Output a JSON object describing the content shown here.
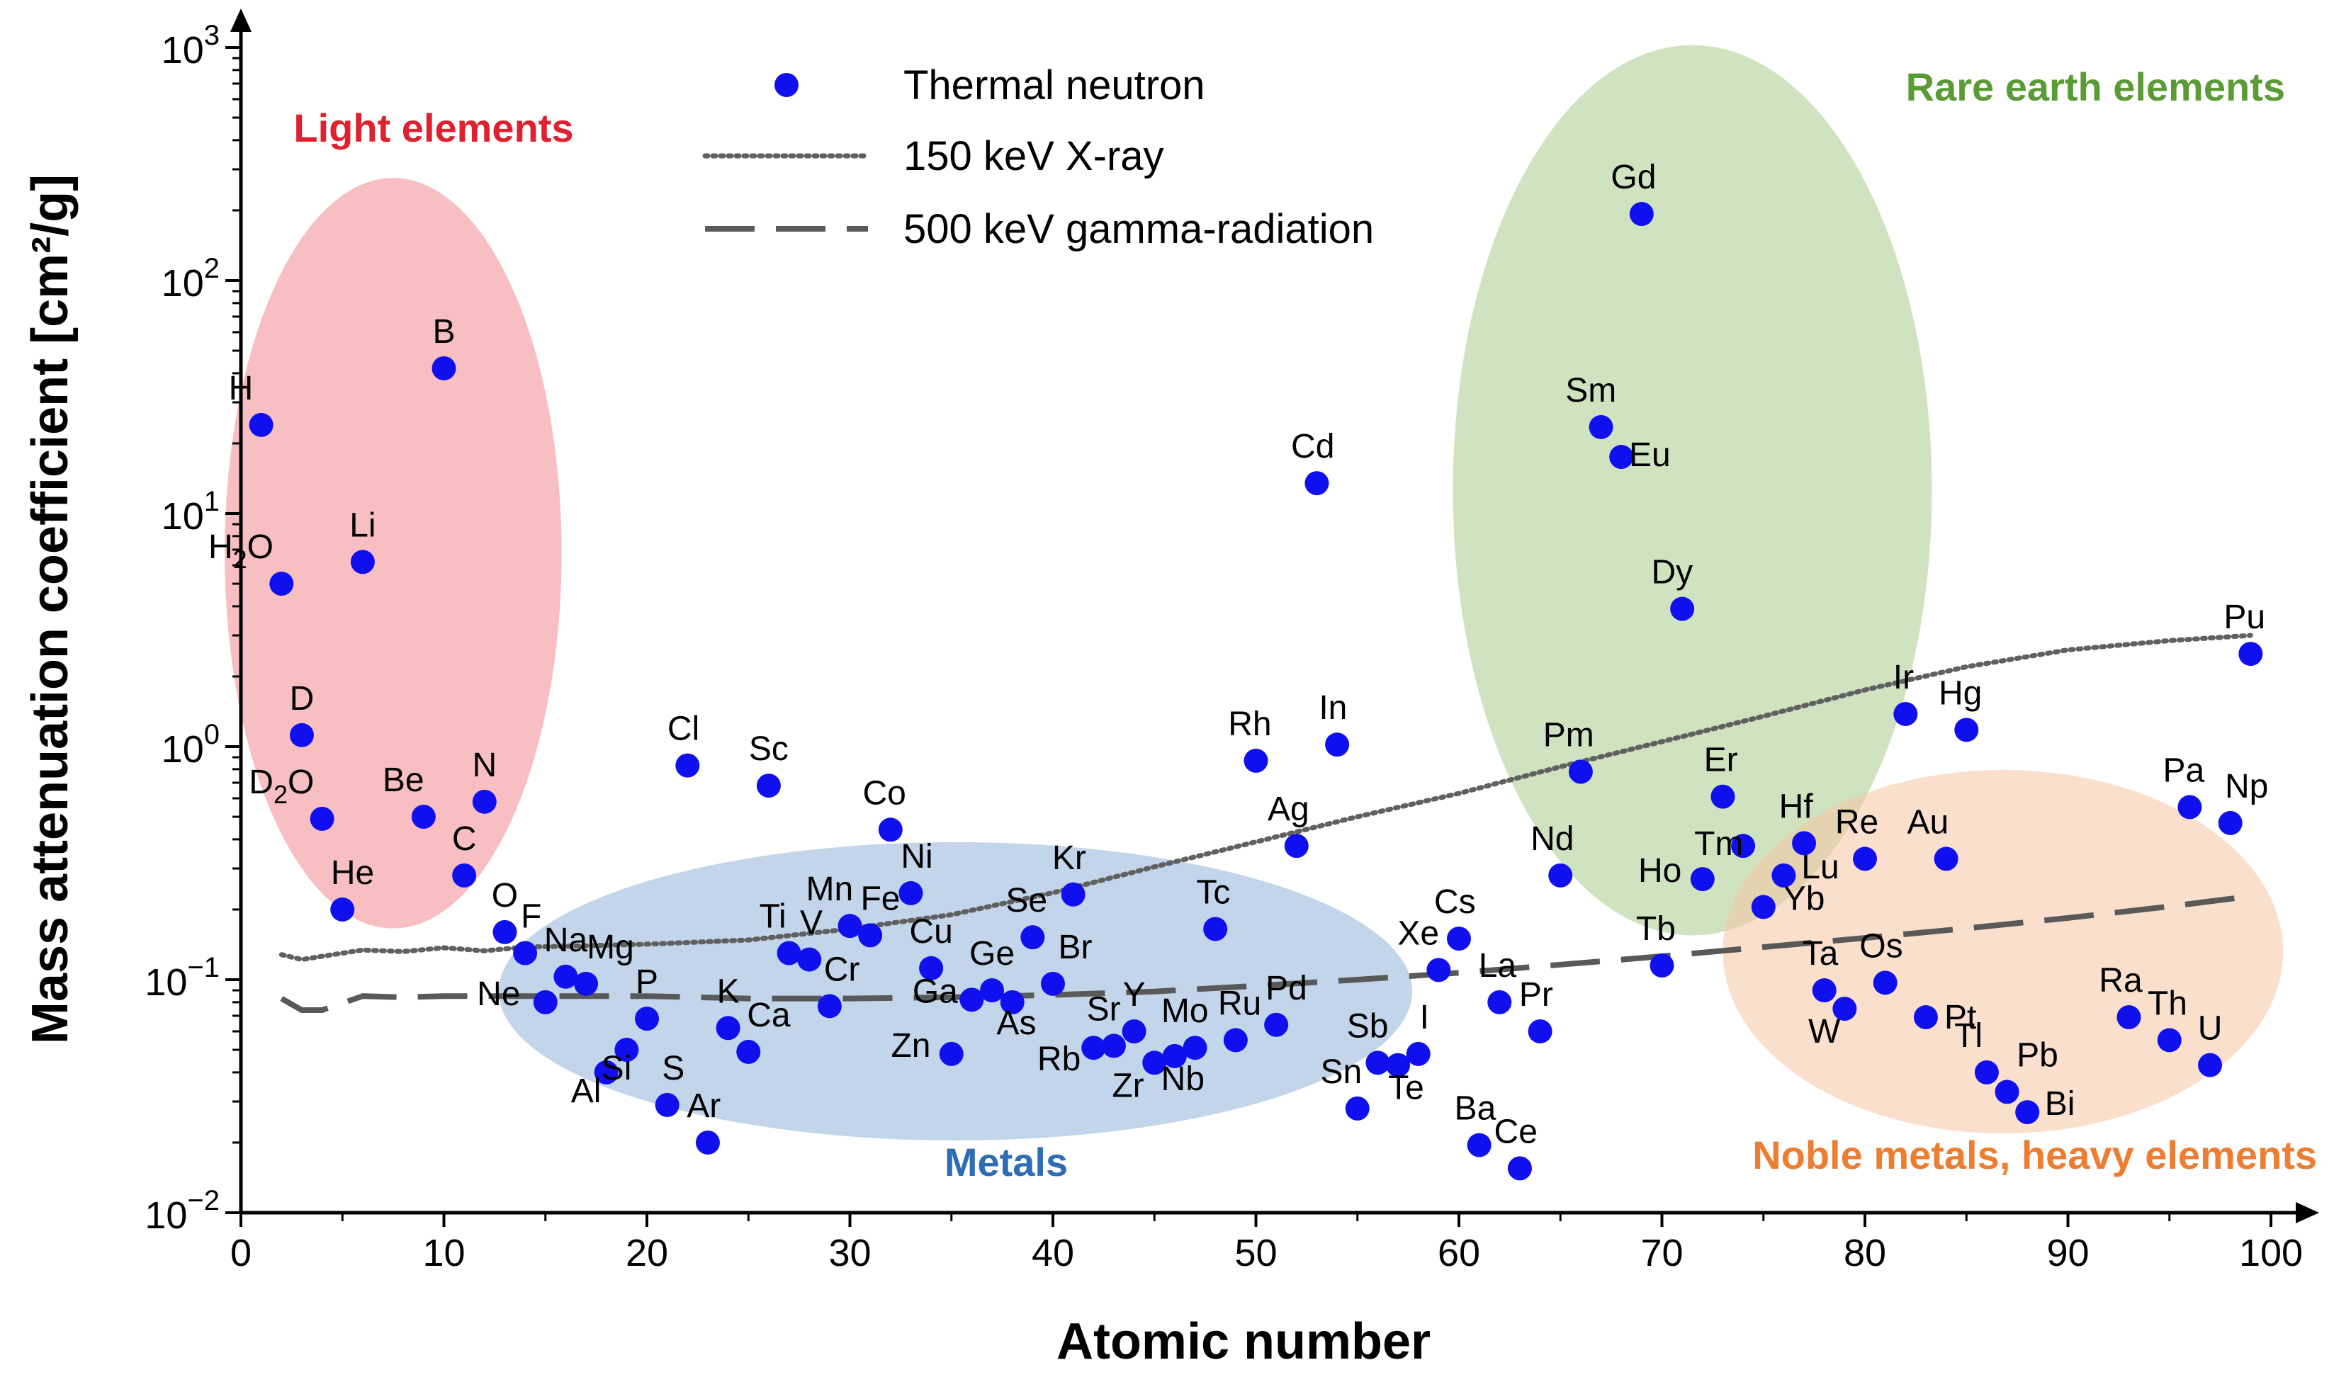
{
  "chart_data": {
    "type": "scatter",
    "title": "",
    "xlabel": "Atomic number",
    "ylabel": "Mass attenuation coefficient [cm²/g]",
    "xlim": [
      0,
      100
    ],
    "ylim_log10": [
      -2,
      3
    ],
    "yscale": "log",
    "x_ticks": [
      0,
      10,
      20,
      30,
      40,
      50,
      60,
      70,
      80,
      90,
      100
    ],
    "y_ticks": [
      {
        "base": "10",
        "exp": "3"
      },
      {
        "base": "10",
        "exp": "2"
      },
      {
        "base": "10",
        "exp": "1"
      },
      {
        "base": "10",
        "exp": "0"
      },
      {
        "base": "10",
        "exp": "−1"
      },
      {
        "base": "10",
        "exp": "−2"
      }
    ],
    "legend": [
      {
        "name": "Thermal neutron",
        "style": "dot"
      },
      {
        "name": "150 keV X-ray",
        "style": "dotted"
      },
      {
        "name": "500 keV gamma-radiation",
        "style": "dashed"
      }
    ],
    "groups": [
      {
        "name": "Light elements",
        "color": "#f28b8f",
        "text_color": "#e0202e",
        "cx": 7.5,
        "cy": 0.83,
        "rx": 8.3,
        "ry": 1.61
      },
      {
        "name": "Rare earth elements",
        "color": "#a8cc8c",
        "text_color": "#5b9b35",
        "cx": 71.5,
        "cy": 1.1,
        "rx": 11.8,
        "ry": 1.91
      },
      {
        "name": "Metals",
        "color": "#8fb3db",
        "text_color": "#2e6db4",
        "cx": 35.2,
        "cy": -1.05,
        "rx": 22.5,
        "ry": 0.64
      },
      {
        "name": "Noble metals, heavy elements",
        "color": "#f8c4a4",
        "text_color": "#ed7d31",
        "cx": 86.8,
        "cy": -0.88,
        "rx": 13.8,
        "ry": 0.78
      }
    ],
    "series": [
      {
        "name": "Thermal neutron",
        "color": "#1010ee",
        "points": [
          {
            "label": "H",
            "sub": "",
            "x": 1,
            "y": 24,
            "lx": -1,
            "ly": 36
          },
          {
            "label": "H",
            "sub": "2",
            "x": 2,
            "y": 5.0,
            "lx": -2,
            "ly": 36
          },
          {
            "label": "Li",
            "sub": "",
            "x": 6,
            "y": 6.2,
            "lx": 0,
            "ly": 36
          },
          {
            "label": "B",
            "sub": "",
            "x": 10,
            "y": 42,
            "lx": 0,
            "ly": 36
          },
          {
            "label": "D",
            "sub": "",
            "x": 3,
            "y": 1.12,
            "lx": 0,
            "ly": 36
          },
          {
            "label": "D",
            "sub": "2",
            "x": 4,
            "y": 0.49,
            "lx": -2,
            "ly": 36
          },
          {
            "label": "Be",
            "sub": "",
            "x": 9,
            "y": 0.5,
            "lx": -1,
            "ly": 36
          },
          {
            "label": "N",
            "sub": "",
            "x": 12,
            "y": 0.58,
            "lx": 0,
            "ly": 36
          },
          {
            "label": "C",
            "sub": "",
            "x": 11,
            "y": 0.28,
            "lx": 0,
            "ly": 36
          },
          {
            "label": "He",
            "sub": "",
            "x": 5,
            "y": 0.2,
            "lx": 0.5,
            "ly": 36
          },
          {
            "label": "O",
            "sub": "",
            "x": 13,
            "y": 0.16,
            "lx": 0,
            "ly": 36
          },
          {
            "label": "F",
            "sub": "",
            "x": 14,
            "y": 0.13,
            "lx": 0.3,
            "ly": 36
          },
          {
            "label": "Ne",
            "sub": "",
            "x": 15,
            "y": 0.08,
            "lx": -2.3,
            "ly": -4
          },
          {
            "label": "Na",
            "sub": "",
            "x": 16,
            "y": 0.103,
            "lx": 0,
            "ly": 36
          },
          {
            "label": "Mg",
            "sub": "",
            "x": 17,
            "y": 0.096,
            "lx": 1.2,
            "ly": 36
          },
          {
            "label": "Al",
            "sub": "",
            "x": 18,
            "y": 0.04,
            "lx": -1,
            "ly": -42
          },
          {
            "label": "Si",
            "sub": "",
            "x": 19,
            "y": 0.05,
            "lx": -0.5,
            "ly": -42
          },
          {
            "label": "P",
            "sub": "",
            "x": 20,
            "y": 0.068,
            "lx": 0,
            "ly": 36
          },
          {
            "label": "S",
            "sub": "",
            "x": 21,
            "y": 0.029,
            "lx": 0.3,
            "ly": 36
          },
          {
            "label": "Cl",
            "sub": "",
            "x": 22,
            "y": 0.83,
            "lx": -0.2,
            "ly": 36
          },
          {
            "label": "Ar",
            "sub": "",
            "x": 23,
            "y": 0.02,
            "lx": -0.2,
            "ly": 36
          },
          {
            "label": "K",
            "sub": "",
            "x": 24,
            "y": 0.062,
            "lx": 0,
            "ly": 36
          },
          {
            "label": "Ca",
            "sub": "",
            "x": 25,
            "y": 0.049,
            "lx": 1,
            "ly": 36
          },
          {
            "label": "Sc",
            "sub": "",
            "x": 26,
            "y": 0.68,
            "lx": 0,
            "ly": 36
          },
          {
            "label": "Ti",
            "sub": "",
            "x": 27,
            "y": 0.13,
            "lx": -0.8,
            "ly": 36
          },
          {
            "label": "V",
            "sub": "",
            "x": 28,
            "y": 0.122,
            "lx": 0.1,
            "ly": 36
          },
          {
            "label": "Cr",
            "sub": "",
            "x": 29,
            "y": 0.077,
            "lx": 0.6,
            "ly": 36
          },
          {
            "label": "Mn",
            "sub": "",
            "x": 30,
            "y": 0.17,
            "lx": -1,
            "ly": 36
          },
          {
            "label": "Fe",
            "sub": "",
            "x": 31,
            "y": 0.155,
            "lx": 0.5,
            "ly": 36
          },
          {
            "label": "Co",
            "sub": "",
            "x": 32,
            "y": 0.44,
            "lx": -0.3,
            "ly": 36
          },
          {
            "label": "Ni",
            "sub": "",
            "x": 33,
            "y": 0.235,
            "lx": 0.3,
            "ly": 36
          },
          {
            "label": "Cu",
            "sub": "",
            "x": 34,
            "y": 0.112,
            "lx": 0,
            "ly": 36
          },
          {
            "label": "Zn",
            "sub": "",
            "x": 35,
            "y": 0.048,
            "lx": -2,
            "ly": -4
          },
          {
            "label": "Ga",
            "sub": "",
            "x": 36,
            "y": 0.082,
            "lx": -1.8,
            "ly": -4
          },
          {
            "label": "Ge",
            "sub": "",
            "x": 37,
            "y": 0.09,
            "lx": 0,
            "ly": 36
          },
          {
            "label": "As",
            "sub": "",
            "x": 38,
            "y": 0.08,
            "lx": 0.2,
            "ly": -45
          },
          {
            "label": "Se",
            "sub": "",
            "x": 39,
            "y": 0.152,
            "lx": -0.3,
            "ly": 36
          },
          {
            "label": "Br",
            "sub": "",
            "x": 40,
            "y": 0.096,
            "lx": 1.1,
            "ly": 36
          },
          {
            "label": "Kr",
            "sub": "",
            "x": 41,
            "y": 0.232,
            "lx": -0.2,
            "ly": 36
          },
          {
            "label": "Rb",
            "sub": "",
            "x": 42,
            "y": 0.051,
            "lx": -1.7,
            "ly": -32
          },
          {
            "label": "Sr",
            "sub": "",
            "x": 43,
            "y": 0.052,
            "lx": -0.5,
            "ly": 36
          },
          {
            "label": "Y",
            "sub": "",
            "x": 44,
            "y": 0.06,
            "lx": 0,
            "ly": 36
          },
          {
            "label": "Zr",
            "sub": "",
            "x": 45,
            "y": 0.044,
            "lx": -1.3,
            "ly": -48
          },
          {
            "label": "Nb",
            "sub": "",
            "x": 46,
            "y": 0.047,
            "lx": 0.4,
            "ly": -48
          },
          {
            "label": "Mo",
            "sub": "",
            "x": 47,
            "y": 0.051,
            "lx": -0.5,
            "ly": 36
          },
          {
            "label": "Tc",
            "sub": "",
            "x": 48,
            "y": 0.165,
            "lx": -0.1,
            "ly": 36
          },
          {
            "label": "Ru",
            "sub": "",
            "x": 49,
            "y": 0.055,
            "lx": 0.2,
            "ly": 36
          },
          {
            "label": "Rh",
            "sub": "",
            "x": 50,
            "y": 0.87,
            "lx": -0.3,
            "ly": 36
          },
          {
            "label": "Pd",
            "sub": "",
            "x": 51,
            "y": 0.064,
            "lx": 0.5,
            "ly": 36
          },
          {
            "label": "Ag",
            "sub": "",
            "x": 52,
            "y": 0.375,
            "lx": -0.4,
            "ly": 36
          },
          {
            "label": "Cd",
            "sub": "",
            "x": 53,
            "y": 13.5,
            "lx": -0.2,
            "ly": 36
          },
          {
            "label": "In",
            "sub": "",
            "x": 54,
            "y": 1.02,
            "lx": -0.2,
            "ly": 36
          },
          {
            "label": "Sn",
            "sub": "",
            "x": 55,
            "y": 0.028,
            "lx": -0.8,
            "ly": 36
          },
          {
            "label": "Sb",
            "sub": "",
            "x": 56,
            "y": 0.044,
            "lx": -0.5,
            "ly": 36
          },
          {
            "label": "Te",
            "sub": "",
            "x": 57,
            "y": 0.043,
            "lx": 0.4,
            "ly": -48
          },
          {
            "label": "I",
            "sub": "",
            "x": 58,
            "y": 0.048,
            "lx": 0.3,
            "ly": 36
          },
          {
            "label": "Xe",
            "sub": "",
            "x": 59,
            "y": 0.11,
            "lx": -1,
            "ly": 36
          },
          {
            "label": "Cs",
            "sub": "",
            "x": 60,
            "y": 0.15,
            "lx": -0.2,
            "ly": 36
          },
          {
            "label": "Ba",
            "sub": "",
            "x": 61,
            "y": 0.0195,
            "lx": -0.2,
            "ly": 36
          },
          {
            "label": "La",
            "sub": "",
            "x": 62,
            "y": 0.08,
            "lx": -0.1,
            "ly": 36
          },
          {
            "label": "Ce",
            "sub": "",
            "x": 63,
            "y": 0.0155,
            "lx": -0.2,
            "ly": 36
          },
          {
            "label": "Pr",
            "sub": "",
            "x": 64,
            "y": 0.06,
            "lx": -0.2,
            "ly": 36
          },
          {
            "label": "Nd",
            "sub": "",
            "x": 65,
            "y": 0.28,
            "lx": -0.4,
            "ly": 36
          },
          {
            "label": "Pm",
            "sub": "",
            "x": 66,
            "y": 0.78,
            "lx": -0.6,
            "ly": 36
          },
          {
            "label": "Sm",
            "sub": "",
            "x": 67,
            "y": 23.5,
            "lx": -0.5,
            "ly": 36
          },
          {
            "label": "Eu",
            "sub": "",
            "x": 68,
            "y": 17.5,
            "lx": 1.4,
            "ly": -13
          },
          {
            "label": "Gd",
            "sub": "",
            "x": 69,
            "y": 193,
            "lx": -0.4,
            "ly": 36
          },
          {
            "label": "Dy",
            "sub": "",
            "x": 71,
            "y": 3.9,
            "lx": -0.5,
            "ly": 36
          },
          {
            "label": "Tb",
            "sub": "",
            "x": 70,
            "y": 0.115,
            "lx": -0.3,
            "ly": 36
          },
          {
            "label": "Ho",
            "sub": "",
            "x": 72,
            "y": 0.27,
            "lx": -2.1,
            "ly": -4
          },
          {
            "label": "Er",
            "sub": "",
            "x": 73,
            "y": 0.61,
            "lx": -0.1,
            "ly": 36
          },
          {
            "label": "Tm",
            "sub": "",
            "x": 74,
            "y": 0.375,
            "lx": -1.2,
            "ly": -13
          },
          {
            "label": "Yb",
            "sub": "",
            "x": 75,
            "y": 0.205,
            "lx": 2,
            "ly": -4
          },
          {
            "label": "Lu",
            "sub": "",
            "x": 76,
            "y": 0.28,
            "lx": 1.8,
            "ly": -4
          },
          {
            "label": "Hf",
            "sub": "",
            "x": 77,
            "y": 0.385,
            "lx": -0.4,
            "ly": 36
          },
          {
            "label": "Ta",
            "sub": "",
            "x": 78,
            "y": 0.09,
            "lx": -0.2,
            "ly": 36
          },
          {
            "label": "W",
            "sub": "",
            "x": 79,
            "y": 0.075,
            "lx": -1,
            "ly": -48
          },
          {
            "label": "Re",
            "sub": "",
            "x": 80,
            "y": 0.33,
            "lx": -0.4,
            "ly": 36
          },
          {
            "label": "Os",
            "sub": "",
            "x": 81,
            "y": 0.097,
            "lx": -0.2,
            "ly": 36
          },
          {
            "label": "Ir",
            "sub": "",
            "x": 82,
            "y": 1.38,
            "lx": -0.1,
            "ly": 36
          },
          {
            "label": "Pt",
            "sub": "",
            "x": 83,
            "y": 0.069,
            "lx": 1.7,
            "ly": -16
          },
          {
            "label": "Au",
            "sub": "",
            "x": 84,
            "y": 0.33,
            "lx": -0.9,
            "ly": 36
          },
          {
            "label": "Hg",
            "sub": "",
            "x": 85,
            "y": 1.18,
            "lx": -0.3,
            "ly": 36
          },
          {
            "label": "Tl",
            "sub": "",
            "x": 86,
            "y": 0.04,
            "lx": -0.9,
            "ly": 36
          },
          {
            "label": "Pb",
            "sub": "",
            "x": 87,
            "y": 0.033,
            "lx": 1.5,
            "ly": 36
          },
          {
            "label": "Bi",
            "sub": "",
            "x": 88,
            "y": 0.027,
            "lx": 1.6,
            "ly": -4
          },
          {
            "label": "Ra",
            "sub": "",
            "x": 93,
            "y": 0.069,
            "lx": -0.4,
            "ly": 36
          },
          {
            "label": "Th",
            "sub": "",
            "x": 95,
            "y": 0.055,
            "lx": -0.1,
            "ly": 36
          },
          {
            "label": "U",
            "sub": "",
            "x": 97,
            "y": 0.043,
            "lx": 0,
            "ly": 36
          },
          {
            "label": "Pa",
            "sub": "",
            "x": 96,
            "y": 0.55,
            "lx": -0.3,
            "ly": 36
          },
          {
            "label": "Np",
            "sub": "",
            "x": 98,
            "y": 0.47,
            "lx": 0.8,
            "ly": 36
          },
          {
            "label": "Pu",
            "sub": "",
            "x": 99,
            "y": 2.5,
            "lx": -0.3,
            "ly": 36
          }
        ]
      },
      {
        "name": "150 keV X-ray",
        "style": "dotted",
        "color": "#606060",
        "x": [
          2,
          3,
          4,
          6,
          8,
          10,
          12,
          14,
          16,
          20,
          25,
          30,
          35,
          40,
          45,
          50,
          55,
          60,
          65,
          70,
          75,
          80,
          85,
          90,
          95,
          99
        ],
        "y": [
          0.128,
          0.122,
          0.126,
          0.134,
          0.132,
          0.137,
          0.133,
          0.138,
          0.139,
          0.142,
          0.148,
          0.165,
          0.19,
          0.236,
          0.305,
          0.39,
          0.5,
          0.63,
          0.82,
          1.05,
          1.35,
          1.75,
          2.2,
          2.6,
          2.85,
          3.0
        ]
      },
      {
        "name": "500 keV gamma-radiation",
        "style": "dashed",
        "color": "#595959",
        "x": [
          2,
          3,
          4,
          6,
          8,
          10,
          15,
          20,
          25,
          30,
          35,
          40,
          45,
          50,
          55,
          60,
          65,
          70,
          75,
          80,
          85,
          90,
          95,
          99
        ],
        "y": [
          0.083,
          0.074,
          0.074,
          0.085,
          0.084,
          0.085,
          0.085,
          0.085,
          0.083,
          0.083,
          0.084,
          0.086,
          0.089,
          0.094,
          0.1,
          0.107,
          0.116,
          0.126,
          0.138,
          0.151,
          0.166,
          0.184,
          0.206,
          0.228
        ]
      }
    ]
  }
}
